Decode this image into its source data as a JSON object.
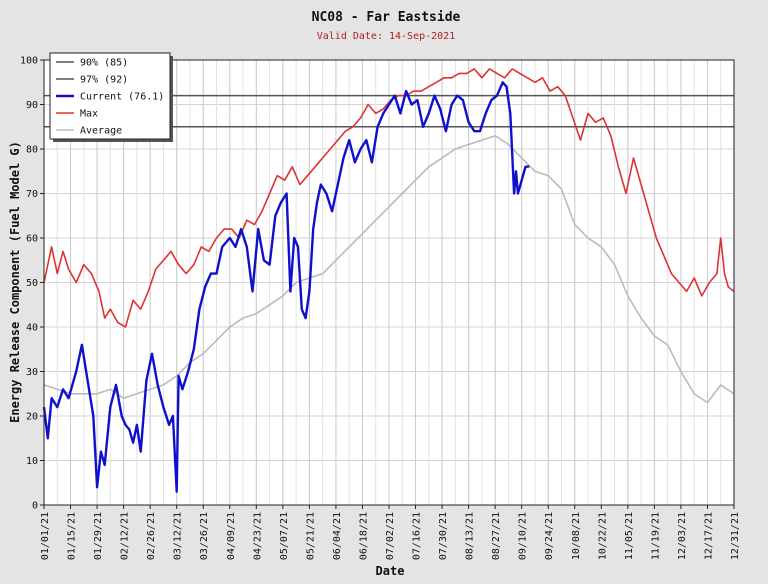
{
  "chart_data": {
    "type": "line",
    "title": "NC08 - Far Eastside",
    "subtitle": "Valid Date: 14-Sep-2021",
    "xlabel": "Date",
    "ylabel": "Energy Release Component (Fuel Model G)",
    "ylim": [
      0,
      100
    ],
    "yticks": [
      0,
      10,
      20,
      30,
      40,
      50,
      60,
      70,
      80,
      90,
      100
    ],
    "xlim": [
      "01/01",
      "12/31"
    ],
    "xtick_labels": [
      "01/01/21",
      "01/15/21",
      "01/29/21",
      "02/12/21",
      "02/26/21",
      "03/12/21",
      "03/26/21",
      "04/09/21",
      "04/23/21",
      "05/07/21",
      "05/21/21",
      "06/04/21",
      "06/18/21",
      "07/02/21",
      "07/16/21",
      "07/30/21",
      "08/13/21",
      "08/27/21",
      "09/10/21",
      "09/24/21",
      "10/08/21",
      "10/22/21",
      "11/05/21",
      "11/19/21",
      "12/03/21",
      "12/17/21",
      "12/31/21"
    ],
    "grid": true,
    "legend_position": "top-left",
    "reference_lines": [
      {
        "name": "90% (85)",
        "value": 85,
        "color": "#555555"
      },
      {
        "name": "97% (92)",
        "value": 92,
        "color": "#555555"
      }
    ],
    "series": [
      {
        "name": "Current (76.1)",
        "color": "#1010cc",
        "x": [
          "01/01",
          "01/03",
          "01/05",
          "01/08",
          "01/11",
          "01/14",
          "01/18",
          "01/21",
          "01/24",
          "01/27",
          "01/29",
          "01/31",
          "02/02",
          "02/05",
          "02/08",
          "02/11",
          "02/13",
          "02/15",
          "02/17",
          "02/19",
          "02/21",
          "02/24",
          "02/27",
          "03/02",
          "03/05",
          "03/08",
          "03/10",
          "03/12",
          "03/13",
          "03/15",
          "03/18",
          "03/21",
          "03/24",
          "03/27",
          "03/30",
          "04/02",
          "04/05",
          "04/09",
          "04/12",
          "04/15",
          "04/18",
          "04/21",
          "04/24",
          "04/27",
          "04/30",
          "05/03",
          "05/06",
          "05/09",
          "05/11",
          "05/13",
          "05/15",
          "05/17",
          "05/19",
          "05/21",
          "05/23",
          "05/25",
          "05/27",
          "05/30",
          "06/02",
          "06/05",
          "06/08",
          "06/11",
          "06/14",
          "06/17",
          "06/20",
          "06/23",
          "06/26",
          "06/29",
          "07/02",
          "07/05",
          "07/08",
          "07/11",
          "07/14",
          "07/17",
          "07/20",
          "07/23",
          "07/26",
          "07/29",
          "08/01",
          "08/04",
          "08/07",
          "08/10",
          "08/13",
          "08/16",
          "08/19",
          "08/22",
          "08/25",
          "08/28",
          "08/31",
          "09/02",
          "09/04",
          "09/06",
          "09/07",
          "09/08",
          "09/10",
          "09/12",
          "09/14"
        ],
        "y": [
          22,
          15,
          24,
          22,
          26,
          24,
          30,
          36,
          28,
          20,
          4,
          12,
          9,
          22,
          27,
          20,
          18,
          17,
          14,
          18,
          12,
          28,
          34,
          27,
          22,
          18,
          20,
          3,
          29,
          26,
          30,
          35,
          44,
          49,
          52,
          52,
          58,
          60,
          58,
          62,
          58,
          48,
          62,
          55,
          54,
          65,
          68,
          70,
          48,
          60,
          58,
          44,
          42,
          48,
          62,
          68,
          72,
          70,
          66,
          72,
          78,
          82,
          77,
          80,
          82,
          77,
          85,
          88,
          90,
          92,
          88,
          93,
          90,
          91,
          85,
          88,
          92,
          89,
          84,
          90,
          92,
          91,
          86,
          84,
          84,
          88,
          91,
          92,
          95,
          94,
          88,
          70,
          75,
          70,
          73,
          76,
          76.1
        ]
      },
      {
        "name": "Max",
        "color": "#dd3333",
        "x": [
          "01/01",
          "01/05",
          "01/08",
          "01/11",
          "01/14",
          "01/18",
          "01/22",
          "01/26",
          "01/30",
          "02/02",
          "02/05",
          "02/09",
          "02/13",
          "02/17",
          "02/21",
          "02/25",
          "03/01",
          "03/05",
          "03/09",
          "03/13",
          "03/17",
          "03/21",
          "03/25",
          "03/29",
          "04/02",
          "04/06",
          "04/10",
          "04/14",
          "04/18",
          "04/22",
          "04/26",
          "04/30",
          "05/04",
          "05/08",
          "05/12",
          "05/16",
          "05/20",
          "05/24",
          "05/28",
          "06/01",
          "06/05",
          "06/09",
          "06/13",
          "06/17",
          "06/21",
          "06/25",
          "06/29",
          "07/03",
          "07/07",
          "07/11",
          "07/15",
          "07/19",
          "07/23",
          "07/27",
          "07/31",
          "08/04",
          "08/08",
          "08/12",
          "08/16",
          "08/20",
          "08/24",
          "08/28",
          "09/01",
          "09/05",
          "09/09",
          "09/13",
          "09/17",
          "09/21",
          "09/25",
          "09/29",
          "10/03",
          "10/07",
          "10/11",
          "10/15",
          "10/19",
          "10/23",
          "10/27",
          "10/31",
          "11/04",
          "11/08",
          "11/12",
          "11/16",
          "11/20",
          "11/24",
          "11/28",
          "12/02",
          "12/06",
          "12/10",
          "12/14",
          "12/18",
          "12/22",
          "12/24",
          "12/26",
          "12/28",
          "12/31"
        ],
        "y": [
          50,
          58,
          52,
          57,
          53,
          50,
          54,
          52,
          48,
          42,
          44,
          41,
          40,
          46,
          44,
          48,
          53,
          55,
          57,
          54,
          52,
          54,
          58,
          57,
          60,
          62,
          62,
          60,
          64,
          63,
          66,
          70,
          74,
          73,
          76,
          72,
          74,
          76,
          78,
          80,
          82,
          84,
          85,
          87,
          90,
          88,
          89,
          91,
          92,
          92,
          93,
          93,
          94,
          95,
          96,
          96,
          97,
          97,
          98,
          96,
          98,
          97,
          96,
          98,
          97,
          96,
          95,
          96,
          93,
          94,
          92,
          87,
          82,
          88,
          86,
          87,
          83,
          76,
          70,
          78,
          72,
          66,
          60,
          56,
          52,
          50,
          48,
          51,
          47,
          50,
          52,
          60,
          52,
          49,
          48
        ]
      },
      {
        "name": "Average",
        "color": "#bbbbbb",
        "x": [
          "01/01",
          "01/08",
          "01/15",
          "01/22",
          "01/29",
          "02/05",
          "02/12",
          "02/19",
          "02/26",
          "03/05",
          "03/12",
          "03/19",
          "03/26",
          "04/02",
          "04/09",
          "04/16",
          "04/23",
          "04/30",
          "05/07",
          "05/14",
          "05/21",
          "05/28",
          "06/04",
          "06/11",
          "06/18",
          "06/25",
          "07/02",
          "07/09",
          "07/16",
          "07/23",
          "07/30",
          "08/06",
          "08/13",
          "08/20",
          "08/27",
          "09/03",
          "09/10",
          "09/17",
          "09/24",
          "10/01",
          "10/08",
          "10/15",
          "10/22",
          "10/29",
          "11/05",
          "11/12",
          "11/19",
          "11/26",
          "12/03",
          "12/10",
          "12/17",
          "12/24",
          "12/31"
        ],
        "y": [
          27,
          26,
          25,
          25,
          25,
          26,
          24,
          25,
          26,
          27,
          29,
          32,
          34,
          37,
          40,
          42,
          43,
          45,
          47,
          50,
          51,
          52,
          55,
          58,
          61,
          64,
          67,
          70,
          73,
          76,
          78,
          80,
          81,
          82,
          83,
          81,
          78,
          75,
          74,
          71,
          63,
          60,
          58,
          54,
          47,
          42,
          38,
          36,
          30,
          25,
          23,
          27,
          25
        ]
      }
    ]
  }
}
